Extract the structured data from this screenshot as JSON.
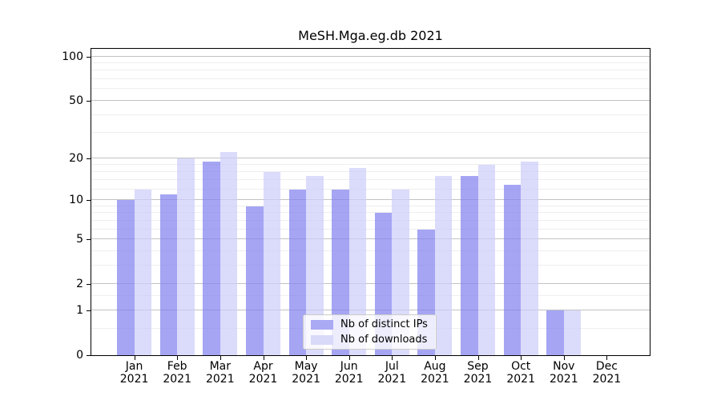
{
  "chart_data": {
    "type": "bar",
    "title": "MeSH.Mga.eg.db 2021",
    "categories": [
      "Jan 2021",
      "Feb 2021",
      "Mar 2021",
      "Apr 2021",
      "May 2021",
      "Jun 2021",
      "Jul 2021",
      "Aug 2021",
      "Sep 2021",
      "Oct 2021",
      "Nov 2021",
      "Dec 2021"
    ],
    "series": [
      {
        "name": "Nb of distinct IPs",
        "color": "#a9a9f4",
        "fill_rgba": "rgba(130,130,240,0.72)",
        "values": [
          10,
          11,
          19,
          9,
          12,
          12,
          8,
          6,
          15,
          13,
          1,
          0
        ]
      },
      {
        "name": "Nb of downloads",
        "color": "#d9d9f9",
        "fill_rgba": "rgba(205,205,250,0.72)",
        "values": [
          12,
          20,
          22,
          16,
          15,
          17,
          12,
          15,
          18,
          19,
          1,
          0
        ]
      }
    ],
    "xlabel": "",
    "ylabel": "",
    "yscale": "log10(1+x)",
    "ylim": [
      0,
      112.7
    ],
    "yticks": [
      0,
      1,
      2,
      5,
      10,
      20,
      50,
      100
    ],
    "minor_gridlines": [
      0.5,
      1.5,
      3,
      4,
      6,
      7,
      8,
      9,
      12,
      14,
      16,
      18,
      30,
      40,
      60,
      70,
      80,
      90
    ],
    "grid": true,
    "legend_position": "lower center",
    "bar_layout": "paired side-by-side per month"
  },
  "colors": {
    "background": "#ffffff",
    "axis": "#000000",
    "text": "#000000",
    "major_grid": "#c2c2c2",
    "minor_grid": "#eeeeee",
    "legend_border": "#cccccc",
    "legend_bg": "rgba(255,255,255,0.8)"
  }
}
